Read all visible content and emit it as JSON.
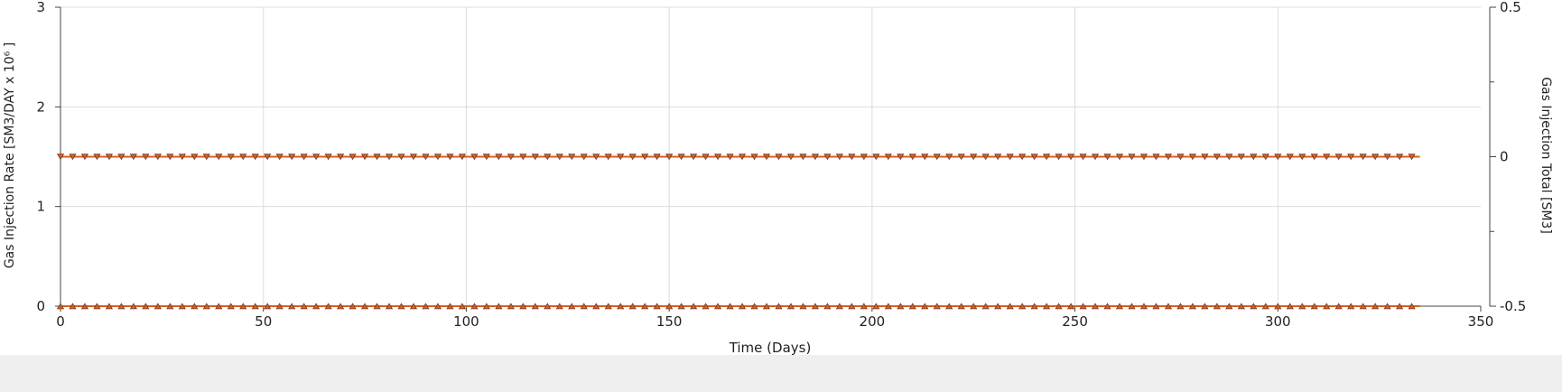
{
  "chart_data": {
    "type": "line",
    "xlabel": "Time (Days)",
    "ylabel_left": "Gas Injection Rate [SM3/DAY x 10⁶ ]",
    "ylabel_right": "Gas Injection Total [SM3]",
    "xlim": [
      0,
      350
    ],
    "ylim_left": [
      0,
      3
    ],
    "ylim_right": [
      -0.5,
      0.5
    ],
    "x_ticks": [
      "0",
      "50",
      "100",
      "150",
      "200",
      "250",
      "300",
      "350"
    ],
    "y_left_ticks": [
      "0",
      "1",
      "2",
      "3"
    ],
    "y_right_ticks": [
      "-0.5",
      "0",
      "0.5"
    ],
    "grid": true,
    "series": [
      {
        "axis": "left",
        "color": "#e05a1a",
        "marker": "triangle-up",
        "x_start": 0,
        "x_end": 335,
        "x_step": 3,
        "value": 0
      },
      {
        "axis": "right",
        "color": "#e05a1a",
        "marker": "triangle-down",
        "x_start": 0,
        "x_end": 335,
        "x_step": 3,
        "value": 0
      }
    ]
  }
}
